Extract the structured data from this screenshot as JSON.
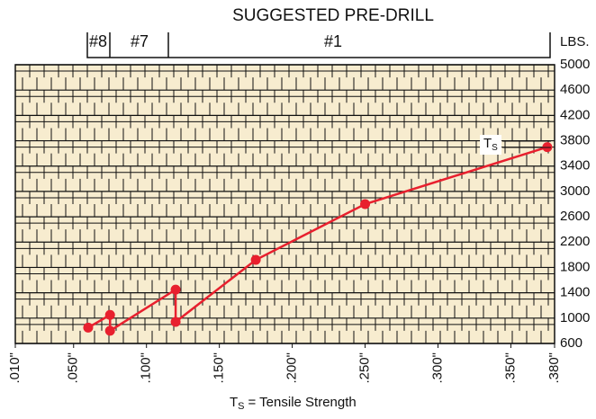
{
  "chart_data": {
    "type": "line",
    "title": "SUGGESTED PRE-DRILL",
    "drill_sizes": [
      "#8",
      "#7",
      "#1"
    ],
    "ylabel": "LBS.",
    "annotation": {
      "symbol": "T",
      "subscript": "S"
    },
    "footnote": {
      "symbol": "T",
      "subscript": "S",
      "text": "= Tensile Strength"
    },
    "x": [
      0.06,
      0.075,
      0.075,
      0.12,
      0.12,
      0.175,
      0.25,
      0.375
    ],
    "series": [
      {
        "name": "Tensile Strength",
        "color": "#e8202e",
        "values": [
          850,
          1050,
          800,
          1450,
          940,
          1920,
          2800,
          3700
        ]
      }
    ],
    "xlim": [
      0.01,
      0.38
    ],
    "xticks": [
      {
        "value": 0.01,
        "label": ".010\""
      },
      {
        "value": 0.05,
        "label": ".050\""
      },
      {
        "value": 0.1,
        "label": ".100\""
      },
      {
        "value": 0.15,
        "label": ".150\""
      },
      {
        "value": 0.2,
        "label": ".200\""
      },
      {
        "value": 0.25,
        "label": ".250\""
      },
      {
        "value": 0.3,
        "label": ".300\""
      },
      {
        "value": 0.35,
        "label": ".350\""
      },
      {
        "value": 0.38,
        "label": ".380\""
      }
    ],
    "ylim": [
      600,
      5000
    ],
    "yticks": [
      600,
      1000,
      1400,
      1800,
      2200,
      2600,
      3000,
      3400,
      3800,
      4200,
      4600,
      5000
    ],
    "grid": true
  }
}
